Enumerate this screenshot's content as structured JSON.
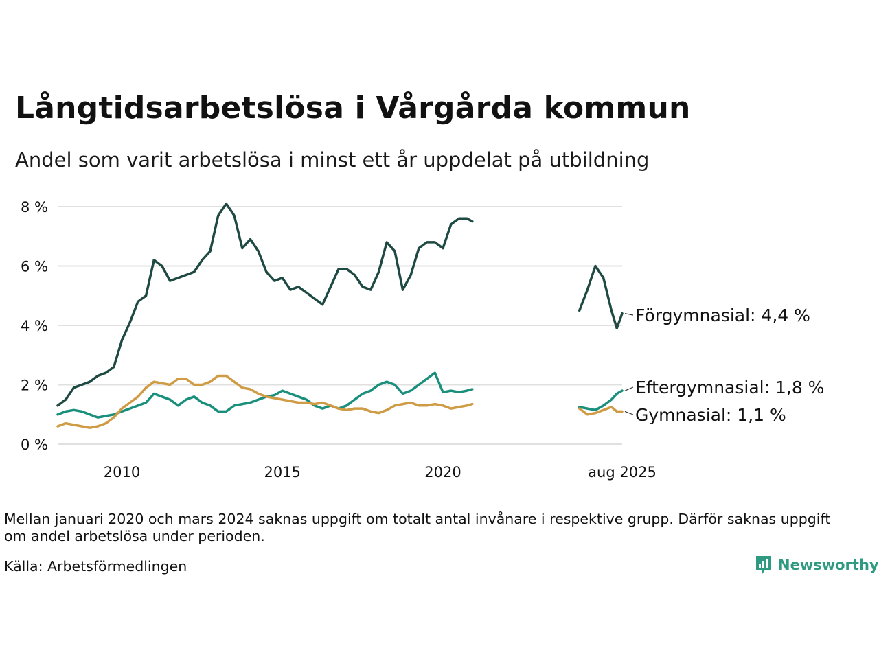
{
  "header": {
    "title": "Långtidsarbetslösa i Vårgårda kommun",
    "subtitle": "Andel som varit arbetslösa i minst ett år uppdelat på utbildning"
  },
  "footer": {
    "note": "Mellan januari 2020 och mars 2024 saknas uppgift om totalt antal invånare i respektive grupp. Därför saknas uppgift om andel arbetslösa under perioden.",
    "source": "Källa: Arbetsförmedlingen",
    "logo_text": "Newsworthy",
    "logo_icon": "bar-chart-speech-bubble-icon"
  },
  "chart_data": {
    "type": "line",
    "x_unit": "date",
    "y_unit": "%",
    "xlim": [
      "2008-01",
      "2025-08"
    ],
    "ylim": [
      0,
      8
    ],
    "yticks": [
      0,
      2,
      4,
      6,
      8
    ],
    "ytick_labels": [
      "0 %",
      "2 %",
      "4 %",
      "6 %",
      "8 %"
    ],
    "xticks": [
      "2010-01",
      "2015-01",
      "2020-01",
      "2025-08"
    ],
    "xtick_labels": [
      "2010",
      "2015",
      "2020",
      "aug 2025"
    ],
    "grid": "horizontal",
    "legend": "end-labels",
    "series": [
      {
        "name": "Förgymnasial",
        "end_label": "Förgymnasial: 4,4 %",
        "color": "#1f4a43",
        "points": [
          [
            "2008-01",
            1.3
          ],
          [
            "2008-04",
            1.5
          ],
          [
            "2008-07",
            1.9
          ],
          [
            "2008-10",
            2.0
          ],
          [
            "2009-01",
            2.1
          ],
          [
            "2009-04",
            2.3
          ],
          [
            "2009-07",
            2.4
          ],
          [
            "2009-10",
            2.6
          ],
          [
            "2010-01",
            3.5
          ],
          [
            "2010-04",
            4.1
          ],
          [
            "2010-07",
            4.8
          ],
          [
            "2010-10",
            5.0
          ],
          [
            "2011-01",
            6.2
          ],
          [
            "2011-04",
            6.0
          ],
          [
            "2011-07",
            5.5
          ],
          [
            "2011-10",
            5.6
          ],
          [
            "2012-01",
            5.7
          ],
          [
            "2012-04",
            5.8
          ],
          [
            "2012-07",
            6.2
          ],
          [
            "2012-10",
            6.5
          ],
          [
            "2013-01",
            7.7
          ],
          [
            "2013-04",
            8.1
          ],
          [
            "2013-07",
            7.7
          ],
          [
            "2013-10",
            6.6
          ],
          [
            "2014-01",
            6.9
          ],
          [
            "2014-04",
            6.5
          ],
          [
            "2014-07",
            5.8
          ],
          [
            "2014-10",
            5.5
          ],
          [
            "2015-01",
            5.6
          ],
          [
            "2015-04",
            5.2
          ],
          [
            "2015-07",
            5.3
          ],
          [
            "2015-10",
            5.1
          ],
          [
            "2016-01",
            4.9
          ],
          [
            "2016-04",
            4.7
          ],
          [
            "2016-07",
            5.3
          ],
          [
            "2016-10",
            5.9
          ],
          [
            "2017-01",
            5.9
          ],
          [
            "2017-04",
            5.7
          ],
          [
            "2017-07",
            5.3
          ],
          [
            "2017-10",
            5.2
          ],
          [
            "2018-01",
            5.8
          ],
          [
            "2018-04",
            6.8
          ],
          [
            "2018-07",
            6.5
          ],
          [
            "2018-10",
            5.2
          ],
          [
            "2019-01",
            5.7
          ],
          [
            "2019-04",
            6.6
          ],
          [
            "2019-07",
            6.8
          ],
          [
            "2019-10",
            6.8
          ],
          [
            "2020-01",
            6.6
          ],
          [
            "2020-04",
            7.4
          ],
          [
            "2020-07",
            7.6
          ],
          [
            "2020-10",
            7.6
          ],
          [
            "2020-12",
            7.5
          ],
          null,
          [
            "2024-04",
            4.5
          ],
          [
            "2024-07",
            5.2
          ],
          [
            "2024-10",
            6.0
          ],
          [
            "2025-01",
            5.6
          ],
          [
            "2025-04",
            4.5
          ],
          [
            "2025-06",
            3.9
          ],
          [
            "2025-08",
            4.4
          ]
        ]
      },
      {
        "name": "Eftergymnasial",
        "end_label": "Eftergymnasial: 1,8 %",
        "color": "#1a8f7c",
        "points": [
          [
            "2008-01",
            1.0
          ],
          [
            "2008-04",
            1.1
          ],
          [
            "2008-07",
            1.15
          ],
          [
            "2008-10",
            1.1
          ],
          [
            "2009-01",
            1.0
          ],
          [
            "2009-04",
            0.9
          ],
          [
            "2009-07",
            0.95
          ],
          [
            "2009-10",
            1.0
          ],
          [
            "2010-01",
            1.1
          ],
          [
            "2010-04",
            1.2
          ],
          [
            "2010-07",
            1.3
          ],
          [
            "2010-10",
            1.4
          ],
          [
            "2011-01",
            1.7
          ],
          [
            "2011-04",
            1.6
          ],
          [
            "2011-07",
            1.5
          ],
          [
            "2011-10",
            1.3
          ],
          [
            "2012-01",
            1.5
          ],
          [
            "2012-04",
            1.6
          ],
          [
            "2012-07",
            1.4
          ],
          [
            "2012-10",
            1.3
          ],
          [
            "2013-01",
            1.1
          ],
          [
            "2013-04",
            1.1
          ],
          [
            "2013-07",
            1.3
          ],
          [
            "2013-10",
            1.35
          ],
          [
            "2014-01",
            1.4
          ],
          [
            "2014-04",
            1.5
          ],
          [
            "2014-07",
            1.6
          ],
          [
            "2014-10",
            1.65
          ],
          [
            "2015-01",
            1.8
          ],
          [
            "2015-04",
            1.7
          ],
          [
            "2015-07",
            1.6
          ],
          [
            "2015-10",
            1.5
          ],
          [
            "2016-01",
            1.3
          ],
          [
            "2016-04",
            1.2
          ],
          [
            "2016-07",
            1.3
          ],
          [
            "2016-10",
            1.2
          ],
          [
            "2017-01",
            1.3
          ],
          [
            "2017-04",
            1.5
          ],
          [
            "2017-07",
            1.7
          ],
          [
            "2017-10",
            1.8
          ],
          [
            "2018-01",
            2.0
          ],
          [
            "2018-04",
            2.1
          ],
          [
            "2018-07",
            2.0
          ],
          [
            "2018-10",
            1.7
          ],
          [
            "2019-01",
            1.8
          ],
          [
            "2019-04",
            2.0
          ],
          [
            "2019-07",
            2.2
          ],
          [
            "2019-10",
            2.4
          ],
          [
            "2020-01",
            1.75
          ],
          [
            "2020-04",
            1.8
          ],
          [
            "2020-07",
            1.75
          ],
          [
            "2020-10",
            1.8
          ],
          [
            "2020-12",
            1.85
          ],
          null,
          [
            "2024-04",
            1.25
          ],
          [
            "2024-07",
            1.2
          ],
          [
            "2024-10",
            1.15
          ],
          [
            "2025-01",
            1.3
          ],
          [
            "2025-04",
            1.5
          ],
          [
            "2025-06",
            1.7
          ],
          [
            "2025-08",
            1.8
          ]
        ]
      },
      {
        "name": "Gymnasial",
        "end_label": "Gymnasial: 1,1 %",
        "color": "#cf9c45",
        "points": [
          [
            "2008-01",
            0.6
          ],
          [
            "2008-04",
            0.7
          ],
          [
            "2008-07",
            0.65
          ],
          [
            "2008-10",
            0.6
          ],
          [
            "2009-01",
            0.55
          ],
          [
            "2009-04",
            0.6
          ],
          [
            "2009-07",
            0.7
          ],
          [
            "2009-10",
            0.9
          ],
          [
            "2010-01",
            1.2
          ],
          [
            "2010-04",
            1.4
          ],
          [
            "2010-07",
            1.6
          ],
          [
            "2010-10",
            1.9
          ],
          [
            "2011-01",
            2.1
          ],
          [
            "2011-04",
            2.05
          ],
          [
            "2011-07",
            2.0
          ],
          [
            "2011-10",
            2.2
          ],
          [
            "2012-01",
            2.2
          ],
          [
            "2012-04",
            2.0
          ],
          [
            "2012-07",
            2.0
          ],
          [
            "2012-10",
            2.1
          ],
          [
            "2013-01",
            2.3
          ],
          [
            "2013-04",
            2.3
          ],
          [
            "2013-07",
            2.1
          ],
          [
            "2013-10",
            1.9
          ],
          [
            "2014-01",
            1.85
          ],
          [
            "2014-04",
            1.7
          ],
          [
            "2014-07",
            1.6
          ],
          [
            "2014-10",
            1.55
          ],
          [
            "2015-01",
            1.5
          ],
          [
            "2015-04",
            1.45
          ],
          [
            "2015-07",
            1.4
          ],
          [
            "2015-10",
            1.4
          ],
          [
            "2016-01",
            1.35
          ],
          [
            "2016-04",
            1.4
          ],
          [
            "2016-07",
            1.3
          ],
          [
            "2016-10",
            1.2
          ],
          [
            "2017-01",
            1.15
          ],
          [
            "2017-04",
            1.2
          ],
          [
            "2017-07",
            1.2
          ],
          [
            "2017-10",
            1.1
          ],
          [
            "2018-01",
            1.05
          ],
          [
            "2018-04",
            1.15
          ],
          [
            "2018-07",
            1.3
          ],
          [
            "2018-10",
            1.35
          ],
          [
            "2019-01",
            1.4
          ],
          [
            "2019-04",
            1.3
          ],
          [
            "2019-07",
            1.3
          ],
          [
            "2019-10",
            1.35
          ],
          [
            "2020-01",
            1.3
          ],
          [
            "2020-04",
            1.2
          ],
          [
            "2020-07",
            1.25
          ],
          [
            "2020-10",
            1.3
          ],
          [
            "2020-12",
            1.35
          ],
          null,
          [
            "2024-04",
            1.2
          ],
          [
            "2024-07",
            1.0
          ],
          [
            "2024-10",
            1.05
          ],
          [
            "2025-01",
            1.15
          ],
          [
            "2025-04",
            1.25
          ],
          [
            "2025-06",
            1.1
          ],
          [
            "2025-08",
            1.1
          ]
        ]
      }
    ]
  }
}
